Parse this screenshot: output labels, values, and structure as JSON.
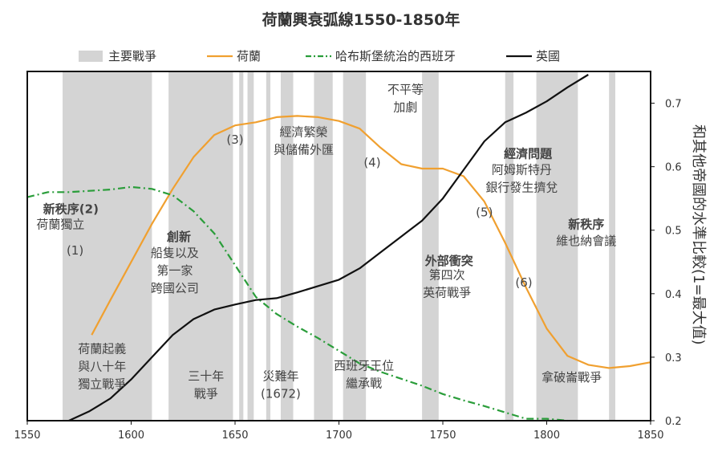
{
  "chart_data": {
    "type": "line",
    "title": "荷蘭興衰弧線1550-1850年",
    "ylabel": "和其他帝國的水準比較(1=最大值)",
    "xlim": [
      1550,
      1850
    ],
    "ylim": [
      0.2,
      0.75
    ],
    "x_ticks": [
      "1550",
      "1600",
      "1650",
      "1700",
      "1750",
      "1800",
      "1850"
    ],
    "y_ticks": [
      "0.2",
      "0.3",
      "0.4",
      "0.5",
      "0.6",
      "0.7"
    ],
    "grid": false,
    "legend_position": "top",
    "legend": [
      {
        "label": "主要戰爭",
        "color": "#d4d4d4",
        "style": "band"
      },
      {
        "label": "荷蘭",
        "color": "#f0a030",
        "style": "solid"
      },
      {
        "label": "哈布斯堡統治的西班牙",
        "color": "#2a9d3a",
        "style": "dashdot"
      },
      {
        "label": "英國",
        "color": "#111111",
        "style": "solid"
      }
    ],
    "war_periods": [
      [
        1567,
        1610
      ],
      [
        1618,
        1649
      ],
      [
        1652,
        1654
      ],
      [
        1656,
        1659
      ],
      [
        1665,
        1667
      ],
      [
        1672,
        1678
      ],
      [
        1688,
        1697
      ],
      [
        1702,
        1713
      ],
      [
        1740,
        1748
      ],
      [
        1780,
        1784
      ],
      [
        1795,
        1815
      ],
      [
        1830,
        1833
      ]
    ],
    "series": [
      {
        "name": "荷蘭",
        "color": "#f0a030",
        "style": "solid",
        "points": [
          [
            1581,
            0.335
          ],
          [
            1590,
            0.39
          ],
          [
            1600,
            0.45
          ],
          [
            1610,
            0.51
          ],
          [
            1620,
            0.565
          ],
          [
            1630,
            0.615
          ],
          [
            1640,
            0.65
          ],
          [
            1650,
            0.665
          ],
          [
            1660,
            0.67
          ],
          [
            1670,
            0.678
          ],
          [
            1680,
            0.68
          ],
          [
            1690,
            0.678
          ],
          [
            1700,
            0.672
          ],
          [
            1710,
            0.66
          ],
          [
            1720,
            0.63
          ],
          [
            1730,
            0.604
          ],
          [
            1740,
            0.597
          ],
          [
            1750,
            0.597
          ],
          [
            1760,
            0.585
          ],
          [
            1770,
            0.545
          ],
          [
            1780,
            0.48
          ],
          [
            1790,
            0.41
          ],
          [
            1800,
            0.345
          ],
          [
            1810,
            0.302
          ],
          [
            1820,
            0.288
          ],
          [
            1830,
            0.283
          ],
          [
            1840,
            0.286
          ],
          [
            1850,
            0.292
          ]
        ]
      },
      {
        "name": "哈布斯堡統治的西班牙",
        "color": "#2a9d3a",
        "style": "dashdot",
        "points": [
          [
            1550,
            0.552
          ],
          [
            1560,
            0.56
          ],
          [
            1570,
            0.56
          ],
          [
            1580,
            0.562
          ],
          [
            1590,
            0.564
          ],
          [
            1600,
            0.568
          ],
          [
            1610,
            0.565
          ],
          [
            1620,
            0.555
          ],
          [
            1630,
            0.53
          ],
          [
            1640,
            0.495
          ],
          [
            1650,
            0.445
          ],
          [
            1660,
            0.395
          ],
          [
            1670,
            0.368
          ],
          [
            1680,
            0.348
          ],
          [
            1690,
            0.33
          ],
          [
            1700,
            0.31
          ],
          [
            1710,
            0.29
          ],
          [
            1720,
            0.277
          ],
          [
            1730,
            0.266
          ],
          [
            1740,
            0.255
          ],
          [
            1750,
            0.242
          ],
          [
            1760,
            0.232
          ],
          [
            1770,
            0.223
          ],
          [
            1780,
            0.213
          ],
          [
            1790,
            0.203
          ],
          [
            1800,
            0.203
          ],
          [
            1810,
            0.2
          ]
        ]
      },
      {
        "name": "英國",
        "color": "#111111",
        "style": "solid",
        "points": [
          [
            1570,
            0.2
          ],
          [
            1580,
            0.215
          ],
          [
            1590,
            0.235
          ],
          [
            1600,
            0.265
          ],
          [
            1610,
            0.3
          ],
          [
            1620,
            0.335
          ],
          [
            1630,
            0.36
          ],
          [
            1640,
            0.375
          ],
          [
            1650,
            0.383
          ],
          [
            1660,
            0.39
          ],
          [
            1670,
            0.393
          ],
          [
            1680,
            0.402
          ],
          [
            1690,
            0.412
          ],
          [
            1700,
            0.422
          ],
          [
            1710,
            0.44
          ],
          [
            1720,
            0.465
          ],
          [
            1730,
            0.49
          ],
          [
            1740,
            0.515
          ],
          [
            1750,
            0.55
          ],
          [
            1760,
            0.595
          ],
          [
            1770,
            0.64
          ],
          [
            1780,
            0.67
          ],
          [
            1790,
            0.685
          ],
          [
            1800,
            0.703
          ],
          [
            1810,
            0.725
          ],
          [
            1820,
            0.745
          ]
        ]
      }
    ],
    "annotations": [
      {
        "lines": [
          "(1)"
        ],
        "x": 1573,
        "y": 0.462,
        "bold": false
      },
      {
        "lines": [
          "新秩序(2)"
        ],
        "x": 1571,
        "y": 0.527,
        "bold": true
      },
      {
        "lines": [
          "荷蘭獨立"
        ],
        "x": 1566,
        "y": 0.503,
        "bold": false
      },
      {
        "lines": [
          "創新"
        ],
        "x": 1623,
        "y": 0.483,
        "bold": true
      },
      {
        "lines": [
          "船隻以及",
          "第一家",
          "跨國公司"
        ],
        "x": 1621,
        "y": 0.458,
        "bold": false
      },
      {
        "lines": [
          "(3)"
        ],
        "x": 1650,
        "y": 0.636,
        "bold": false
      },
      {
        "lines": [
          "經濟繁榮",
          "與儲備外匯"
        ],
        "x": 1683,
        "y": 0.648,
        "bold": false
      },
      {
        "lines": [
          "(4)"
        ],
        "x": 1716,
        "y": 0.6,
        "bold": false
      },
      {
        "lines": [
          "不平等",
          "加劇"
        ],
        "x": 1732,
        "y": 0.715,
        "bold": false
      },
      {
        "lines": [
          "外部衝突"
        ],
        "x": 1753,
        "y": 0.445,
        "bold": true
      },
      {
        "lines": [
          "第四次",
          "英荷戰爭"
        ],
        "x": 1752,
        "y": 0.423,
        "bold": false
      },
      {
        "lines": [
          "經濟問題"
        ],
        "x": 1791,
        "y": 0.614,
        "bold": true
      },
      {
        "lines": [
          "阿姆斯特丹",
          "銀行發生擠兌"
        ],
        "x": 1788,
        "y": 0.589,
        "bold": false
      },
      {
        "lines": [
          "(5)"
        ],
        "x": 1770,
        "y": 0.522,
        "bold": false
      },
      {
        "lines": [
          "新秩序"
        ],
        "x": 1819,
        "y": 0.503,
        "bold": true
      },
      {
        "lines": [
          "維也納會議"
        ],
        "x": 1819,
        "y": 0.477,
        "bold": false
      },
      {
        "lines": [
          "(6)"
        ],
        "x": 1789,
        "y": 0.411,
        "bold": false
      },
      {
        "lines": [
          "荷蘭起義",
          "與八十年",
          "獨立戰爭"
        ],
        "x": 1586,
        "y": 0.307,
        "bold": false
      },
      {
        "lines": [
          "三十年",
          "戰爭"
        ],
        "x": 1636,
        "y": 0.264,
        "bold": false
      },
      {
        "lines": [
          "災難年",
          "(1672)"
        ],
        "x": 1672,
        "y": 0.264,
        "bold": false
      },
      {
        "lines": [
          "西班牙王位",
          "繼承戰"
        ],
        "x": 1712,
        "y": 0.28,
        "bold": false
      },
      {
        "lines": [
          "拿破崙戰爭"
        ],
        "x": 1812,
        "y": 0.262,
        "bold": false
      }
    ]
  }
}
